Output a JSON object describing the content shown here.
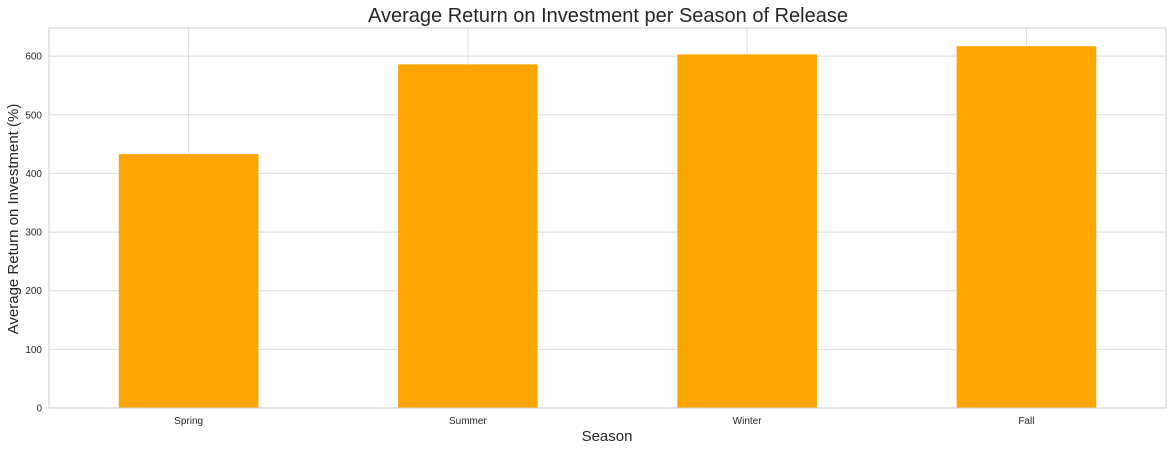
{
  "chart_data": {
    "type": "bar",
    "title": "Average Return on Investment per Season of Release",
    "xlabel": "Season",
    "ylabel": "Average Return on Investment (%)",
    "categories": [
      "Spring",
      "Summer",
      "Winter",
      "Fall"
    ],
    "values": [
      433,
      586,
      603,
      617
    ],
    "ylim": [
      0,
      648
    ],
    "yticks": [
      0,
      100,
      200,
      300,
      400,
      500,
      600
    ],
    "grid": true,
    "bar_color": "#FFA500",
    "grid_color": "#DDDDDD",
    "axis_color": "#CCCCCC",
    "text_color": "#262626"
  }
}
